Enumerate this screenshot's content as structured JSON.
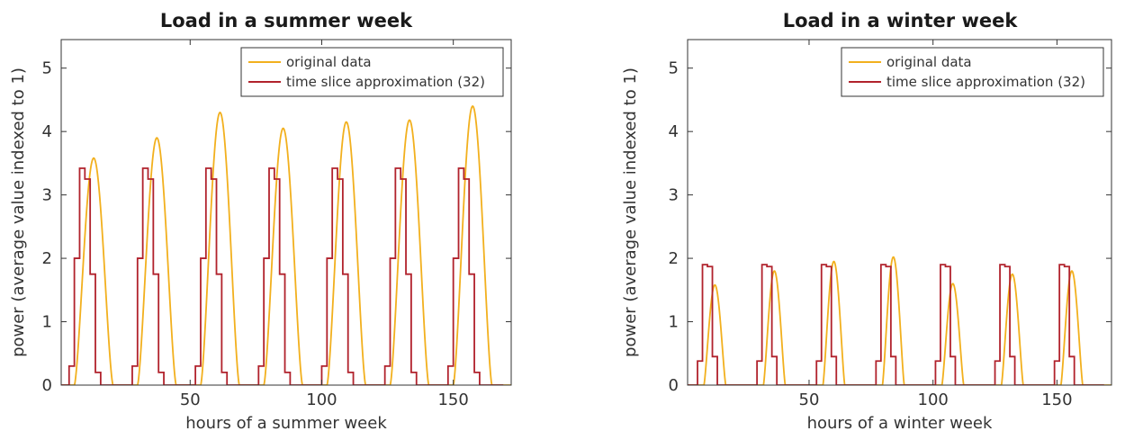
{
  "chart_data": [
    {
      "type": "line",
      "title": "Load in a summer week",
      "xlabel": "hours of a summer week",
      "ylabel": "power (average value indexed to 1)",
      "xlim": [
        1,
        172
      ],
      "ylim": [
        0,
        5.45
      ],
      "xticks": [
        50,
        100,
        150
      ],
      "yticks": [
        0,
        1,
        2,
        3,
        4,
        5
      ],
      "legend_position": "top-right",
      "colors": {
        "original": "#F2B01E",
        "approx": "#B1222C"
      },
      "day_peaks": [
        3.58,
        3.9,
        4.3,
        4.05,
        4.15,
        4.18,
        4.4
      ],
      "slice_levels": {
        "night": 0.0,
        "early": 0.3,
        "morning": 2.0,
        "peak": 3.42,
        "late_peak": 3.25,
        "evening": 1.75,
        "late": 0.2
      },
      "series": [
        {
          "name": "original data",
          "key": "original"
        },
        {
          "name": "time slice approximation (32)",
          "key": "approx"
        }
      ]
    },
    {
      "type": "line",
      "title": "Load in a winter week",
      "xlabel": "hours of a winter week",
      "ylabel": "power (average value indexed to 1)",
      "xlim": [
        1,
        172
      ],
      "ylim": [
        0,
        5.45
      ],
      "xticks": [
        50,
        100,
        150
      ],
      "yticks": [
        0,
        1,
        2,
        3,
        4,
        5
      ],
      "legend_position": "top-right",
      "colors": {
        "original": "#F2B01E",
        "approx": "#B1222C"
      },
      "day_peaks": [
        1.58,
        1.8,
        1.95,
        2.02,
        1.6,
        1.75,
        1.8
      ],
      "slice_levels": {
        "night": 0.0,
        "early": 0.38,
        "peak": 1.9,
        "late_peak": 1.87,
        "evening": 0.45
      },
      "series": [
        {
          "name": "original data",
          "key": "original"
        },
        {
          "name": "time slice approximation (32)",
          "key": "approx"
        }
      ]
    }
  ]
}
